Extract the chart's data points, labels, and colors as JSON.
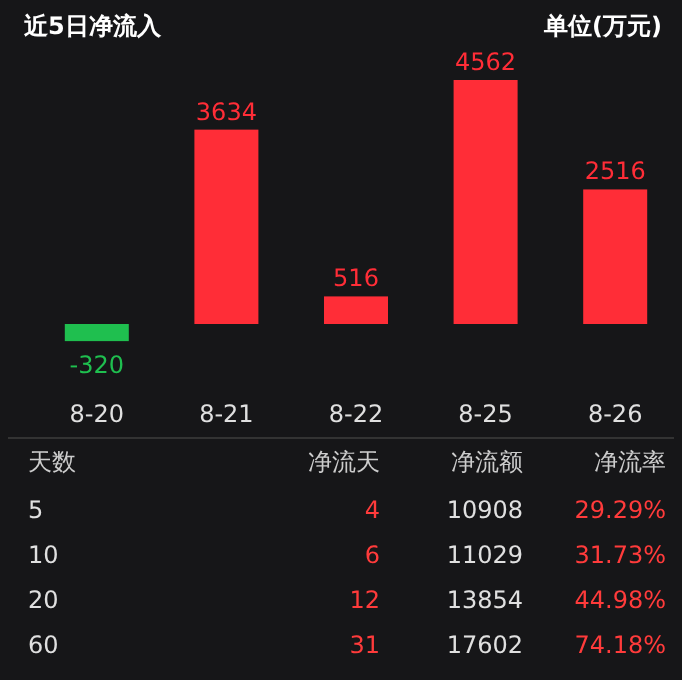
{
  "chart_data": [
    {
      "type": "bar",
      "title": "近5日净流入",
      "subtitle": "单位(万元)",
      "categories": [
        "8-20",
        "8-21",
        "8-22",
        "8-25",
        "8-26"
      ],
      "values": [
        -320,
        3634,
        516,
        4562,
        2516
      ],
      "colors": [
        "#1fbf4f",
        "#ff2d37",
        "#ff2d37",
        "#ff2d37",
        "#ff2d37"
      ],
      "data_labels": true
    },
    {
      "type": "other",
      "categories": [
        "天数",
        "净流天",
        "净流额",
        "净流率"
      ],
      "colors": [
        "#e0e0e0",
        "#ff3b3b",
        "#e0e0e0",
        "#ff3b3b"
      ],
      "annotations": [
        "5",
        "4",
        "10908",
        "29.29%",
        "10",
        "6",
        "11029",
        "31.73%",
        "20",
        "12",
        "13854",
        "44.98%",
        "60",
        "31",
        "17602",
        "74.18%"
      ]
    }
  ]
}
